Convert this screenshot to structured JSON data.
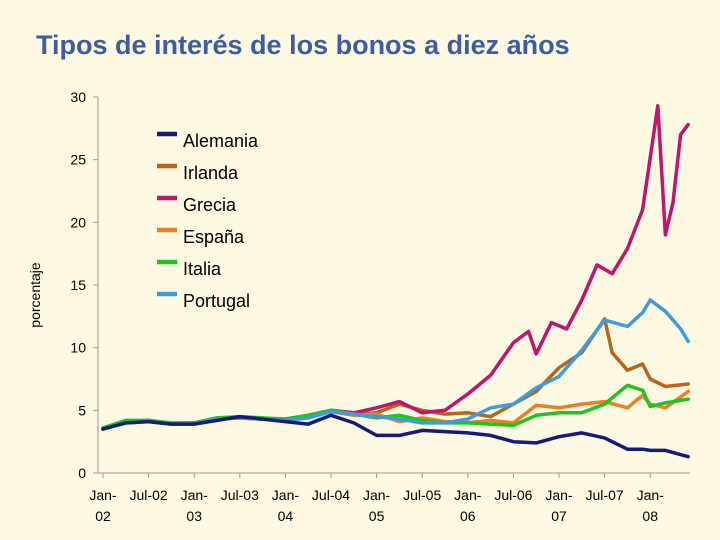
{
  "title": "Tipos de interés de los bonos a diez años",
  "chart_data": {
    "type": "line",
    "title": "Tipos de interés de los bonos a diez años",
    "xlabel": "",
    "ylabel": "porcentaje",
    "ylim": [
      0,
      30
    ],
    "yticks": [
      0,
      5,
      10,
      15,
      20,
      25,
      30
    ],
    "xlim": [
      "2002-01",
      "2008-06"
    ],
    "xticks": [
      {
        "at": "2002-01",
        "line1": "Jan-",
        "line2": "02"
      },
      {
        "at": "2002-07",
        "line1": "Jul-02",
        "line2": ""
      },
      {
        "at": "2003-01",
        "line1": "Jan-",
        "line2": "03"
      },
      {
        "at": "2003-07",
        "line1": "Jul-03",
        "line2": ""
      },
      {
        "at": "2004-01",
        "line1": "Jan-",
        "line2": "04"
      },
      {
        "at": "2004-07",
        "line1": "Jul-04",
        "line2": ""
      },
      {
        "at": "2005-01",
        "line1": "Jan-",
        "line2": "05"
      },
      {
        "at": "2005-07",
        "line1": "Jul-05",
        "line2": ""
      },
      {
        "at": "2006-01",
        "line1": "Jan-",
        "line2": "06"
      },
      {
        "at": "2006-07",
        "line1": "Jul-06",
        "line2": ""
      },
      {
        "at": "2007-01",
        "line1": "Jan-",
        "line2": "07"
      },
      {
        "at": "2007-07",
        "line1": "Jul-07",
        "line2": ""
      },
      {
        "at": "2008-01",
        "line1": "Jan-",
        "line2": "08"
      }
    ],
    "grid": false,
    "legend_position": "top-center",
    "series": [
      {
        "name": "Irlanda",
        "color": "#b8651b",
        "x": [
          "2002-01",
          "2002-04",
          "2002-07",
          "2002-10",
          "2003-01",
          "2003-04",
          "2003-07",
          "2003-10",
          "2004-01",
          "2004-04",
          "2004-07",
          "2004-10",
          "2005-01",
          "2005-04",
          "2005-07",
          "2005-10",
          "2006-01",
          "2006-04",
          "2006-07",
          "2006-10",
          "2007-01",
          "2007-04",
          "2007-07",
          "2007-08",
          "2007-10",
          "2007-12",
          "2008-01",
          "2008-03",
          "2008-06"
        ],
        "values": [
          3.6,
          4.1,
          4.2,
          3.9,
          4.0,
          4.4,
          4.4,
          4.3,
          4.3,
          4.6,
          4.9,
          4.7,
          4.8,
          5.5,
          5.0,
          4.7,
          4.8,
          4.5,
          5.5,
          6.5,
          8.4,
          9.6,
          12.3,
          9.6,
          8.2,
          8.7,
          7.5,
          6.9,
          7.1
        ]
      },
      {
        "name": "Grecia",
        "color": "#c2136e",
        "x": [
          "2002-01",
          "2002-04",
          "2002-07",
          "2002-10",
          "2003-01",
          "2003-04",
          "2003-07",
          "2003-10",
          "2004-01",
          "2004-04",
          "2004-07",
          "2004-10",
          "2005-01",
          "2005-04",
          "2005-07",
          "2005-10",
          "2006-01",
          "2006-04",
          "2006-07",
          "2006-09",
          "2006-10",
          "2006-12",
          "2007-02",
          "2007-04",
          "2007-06",
          "2007-08",
          "2007-10",
          "2007-12",
          "2008-02",
          "2008-03",
          "2008-04",
          "2008-05",
          "2008-06"
        ],
        "values": [
          3.5,
          4.1,
          4.2,
          3.9,
          4.0,
          4.4,
          4.4,
          4.3,
          4.3,
          4.6,
          5.0,
          4.8,
          5.2,
          5.7,
          4.8,
          5.0,
          6.3,
          7.8,
          10.4,
          11.3,
          9.5,
          12.0,
          11.5,
          13.8,
          16.6,
          15.9,
          17.9,
          21.0,
          29.3,
          19.0,
          21.6,
          27.0,
          27.8
        ]
      },
      {
        "name": "España",
        "color": "#ef7d22",
        "x": [
          "2002-01",
          "2002-04",
          "2002-07",
          "2002-10",
          "2003-01",
          "2003-04",
          "2003-07",
          "2003-10",
          "2004-01",
          "2004-04",
          "2004-07",
          "2004-10",
          "2005-01",
          "2005-04",
          "2005-07",
          "2005-10",
          "2006-01",
          "2006-04",
          "2006-07",
          "2006-10",
          "2007-01",
          "2007-04",
          "2007-07",
          "2007-10",
          "2007-12",
          "2008-01",
          "2008-03",
          "2008-06"
        ],
        "values": [
          3.6,
          4.1,
          4.1,
          3.9,
          3.9,
          4.3,
          4.4,
          4.3,
          4.2,
          4.5,
          4.9,
          4.6,
          4.7,
          4.1,
          4.4,
          4.1,
          4.0,
          4.2,
          4.0,
          5.4,
          5.2,
          5.5,
          5.7,
          5.2,
          6.2,
          5.5,
          5.2,
          6.5
        ]
      },
      {
        "name": "Italia",
        "color": "#1fc41f",
        "x": [
          "2002-01",
          "2002-04",
          "2002-07",
          "2002-10",
          "2003-01",
          "2003-04",
          "2003-07",
          "2003-10",
          "2004-01",
          "2004-04",
          "2004-07",
          "2004-10",
          "2005-01",
          "2005-04",
          "2005-07",
          "2005-10",
          "2006-01",
          "2006-04",
          "2006-07",
          "2006-10",
          "2007-01",
          "2007-04",
          "2007-07",
          "2007-10",
          "2007-12",
          "2008-01",
          "2008-03",
          "2008-06"
        ],
        "values": [
          3.6,
          4.2,
          4.2,
          4.0,
          4.0,
          4.4,
          4.5,
          4.4,
          4.3,
          4.6,
          5.0,
          4.7,
          4.4,
          4.6,
          4.2,
          4.0,
          4.0,
          3.9,
          3.8,
          4.6,
          4.8,
          4.8,
          5.5,
          7.0,
          6.6,
          5.3,
          5.6,
          5.9
        ]
      },
      {
        "name": "Portugal",
        "color": "#3d9be3",
        "x": [
          "2002-01",
          "2002-04",
          "2002-07",
          "2002-10",
          "2003-01",
          "2003-04",
          "2003-07",
          "2003-10",
          "2004-01",
          "2004-04",
          "2004-07",
          "2004-10",
          "2005-01",
          "2005-04",
          "2005-07",
          "2005-10",
          "2006-01",
          "2006-04",
          "2006-07",
          "2006-10",
          "2007-01",
          "2007-04",
          "2007-07",
          "2007-10",
          "2007-12",
          "2008-01",
          "2008-03",
          "2008-05",
          "2008-06"
        ],
        "values": [
          3.5,
          4.0,
          4.1,
          3.9,
          3.9,
          4.3,
          4.4,
          4.3,
          4.2,
          4.4,
          4.9,
          4.7,
          4.5,
          4.3,
          4.0,
          4.0,
          4.3,
          5.2,
          5.5,
          6.8,
          7.7,
          9.8,
          12.2,
          11.7,
          12.8,
          13.8,
          12.9,
          11.5,
          10.5
        ]
      },
      {
        "name": "Alemania",
        "color": "#141b7c",
        "x": [
          "2002-01",
          "2002-04",
          "2002-07",
          "2002-10",
          "2003-01",
          "2003-04",
          "2003-07",
          "2003-10",
          "2004-01",
          "2004-04",
          "2004-07",
          "2004-10",
          "2005-01",
          "2005-04",
          "2005-07",
          "2005-10",
          "2006-01",
          "2006-04",
          "2006-07",
          "2006-10",
          "2007-01",
          "2007-04",
          "2007-07",
          "2007-10",
          "2007-12",
          "2008-01",
          "2008-03",
          "2008-06"
        ],
        "values": [
          3.5,
          4.0,
          4.1,
          3.9,
          3.9,
          4.2,
          4.5,
          4.3,
          4.1,
          3.9,
          4.6,
          4.0,
          3.0,
          3.0,
          3.4,
          3.3,
          3.2,
          3.0,
          2.5,
          2.4,
          2.9,
          3.2,
          2.8,
          1.9,
          1.9,
          1.8,
          1.8,
          1.3
        ]
      }
    ],
    "legend": [
      {
        "name": "Alemania",
        "color": "#141b7c"
      },
      {
        "name": "Irlanda",
        "color": "#b8651b"
      },
      {
        "name": "Grecia",
        "color": "#c2136e"
      },
      {
        "name": "España",
        "color": "#ef7d22"
      },
      {
        "name": "Italia",
        "color": "#1fc41f"
      },
      {
        "name": "Portugal",
        "color": "#3d9be3"
      }
    ]
  }
}
